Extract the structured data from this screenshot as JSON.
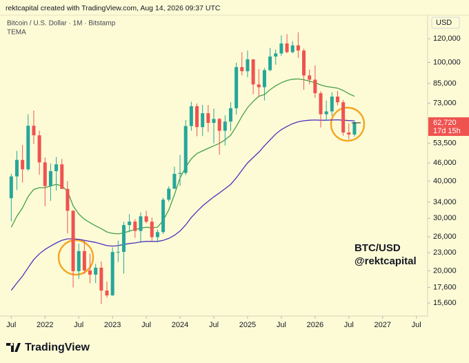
{
  "chart_data": {
    "type": "candlestick",
    "header": "rektcapital created with TradingView.com, Aug 14, 2026 09:37 UTC",
    "title": "Bitcoin / U.S. Dollar · 1M · Bitstamp",
    "indicator": "TEMA",
    "currency": "USD",
    "annotation_pair": "BTC/USD",
    "annotation_author": "@rektcapital",
    "brand": "TradingView",
    "last_label": "62,720",
    "countdown": "17d 15h",
    "up_color": "#26a69a",
    "down_color": "#ef5350",
    "log_scale": true,
    "grid": false,
    "x": [
      "2021-07",
      "2021-08",
      "2021-09",
      "2021-10",
      "2021-11",
      "2021-12",
      "2022-01",
      "2022-02",
      "2022-03",
      "2022-04",
      "2022-05",
      "2022-06",
      "2022-07",
      "2022-08",
      "2022-09",
      "2022-10",
      "2022-11",
      "2022-12",
      "2023-01",
      "2023-02",
      "2023-03",
      "2023-04",
      "2023-05",
      "2023-06",
      "2023-07",
      "2023-08",
      "2023-09",
      "2023-10",
      "2023-11",
      "2023-12",
      "2024-01",
      "2024-02",
      "2024-03",
      "2024-04",
      "2024-05",
      "2024-06",
      "2024-07",
      "2024-08",
      "2024-09",
      "2024-10",
      "2024-11",
      "2024-12",
      "2025-01",
      "2025-02",
      "2025-03",
      "2025-04",
      "2025-05",
      "2025-06",
      "2025-07",
      "2025-08",
      "2025-09",
      "2025-10",
      "2025-11",
      "2025-12",
      "2026-01",
      "2026-02",
      "2026-03",
      "2026-04",
      "2026-05",
      "2026-06",
      "2026-07",
      "2026-08"
    ],
    "open": [
      35030,
      41460,
      47100,
      43790,
      61310,
      56950,
      46210,
      38480,
      43180,
      45510,
      37640,
      31800,
      19940,
      23290,
      20050,
      19420,
      20490,
      17170,
      16540,
      23130,
      23140,
      28470,
      29250,
      27210,
      30470,
      29230,
      25940,
      26970,
      34640,
      37720,
      42280,
      42580,
      61170,
      71330,
      60670,
      67530,
      62680,
      64630,
      58970,
      63330,
      70220,
      96450,
      93430,
      102410,
      84350,
      82550,
      94210,
      104640,
      107170,
      115760,
      108250,
      114050,
      109600,
      90400,
      87500,
      78800,
      67000,
      68500,
      76800,
      73500,
      58200,
      57300
    ],
    "high": [
      42320,
      50480,
      52900,
      67000,
      69000,
      59050,
      48000,
      45800,
      48190,
      47440,
      40000,
      31990,
      24660,
      25200,
      22800,
      21090,
      21480,
      18400,
      23950,
      25250,
      29200,
      31000,
      29830,
      31400,
      31800,
      30200,
      27490,
      35200,
      38420,
      44700,
      48970,
      64000,
      73800,
      72800,
      72000,
      71980,
      70000,
      65100,
      66500,
      73600,
      99800,
      108300,
      109600,
      102500,
      95000,
      95750,
      111900,
      110500,
      123200,
      124400,
      117900,
      126200,
      111200,
      94600,
      97800,
      80000,
      74500,
      79500,
      80200,
      74800,
      62500,
      63800
    ],
    "low": [
      29280,
      37330,
      39600,
      43300,
      53260,
      42000,
      32950,
      34300,
      37170,
      37700,
      26700,
      17600,
      18780,
      19540,
      18150,
      18180,
      15480,
      16260,
      16500,
      21400,
      19570,
      26940,
      25810,
      24800,
      28860,
      25170,
      24900,
      26550,
      34100,
      37630,
      38500,
      41880,
      59000,
      56500,
      56560,
      58400,
      53500,
      49000,
      52600,
      58900,
      66800,
      90500,
      89200,
      78250,
      76600,
      74500,
      93400,
      98200,
      105100,
      107400,
      107300,
      103500,
      81000,
      84400,
      76000,
      60500,
      63800,
      66200,
      71800,
      56800,
      55200,
      56400
    ],
    "close": [
      41460,
      47100,
      43790,
      61310,
      56950,
      46210,
      38480,
      43180,
      45510,
      37640,
      31800,
      19940,
      23290,
      20050,
      19420,
      20490,
      17170,
      16540,
      23130,
      23140,
      28470,
      29250,
      27210,
      30470,
      29230,
      25940,
      26970,
      34640,
      37720,
      42280,
      42580,
      61170,
      71330,
      60670,
      67530,
      62680,
      64630,
      58970,
      63330,
      70220,
      96450,
      93430,
      102410,
      84350,
      82550,
      94210,
      104640,
      107170,
      115760,
      108250,
      114050,
      109600,
      90400,
      87500,
      78800,
      67000,
      68500,
      76800,
      73500,
      58200,
      57300,
      62720
    ],
    "lines": [
      {
        "color": "#43a047",
        "values": [
          28000,
          30500,
          32500,
          35500,
          37500,
          38000,
          38000,
          38500,
          39000,
          38500,
          37000,
          33000,
          31000,
          29800,
          29000,
          28300,
          27700,
          27000,
          26700,
          26600,
          26800,
          27200,
          27500,
          27800,
          28000,
          27900,
          28000,
          29500,
          32000,
          36000,
          41000,
          44500,
          47500,
          49500,
          50500,
          51500,
          52500,
          53500,
          55000,
          57000,
          61000,
          66000,
          70500,
          74000,
          77000,
          78000,
          81000,
          83500,
          85500,
          87000,
          87800,
          88000,
          87500,
          86500,
          85500,
          84000,
          83000,
          82500,
          82000,
          80500,
          78500,
          77000
        ]
      },
      {
        "color": "#4a2fbf",
        "values": [
          17200,
          18200,
          19200,
          20500,
          21800,
          22800,
          23600,
          24200,
          24800,
          25300,
          25600,
          25600,
          25500,
          25300,
          25100,
          24900,
          24600,
          24300,
          24200,
          24300,
          24500,
          24700,
          24800,
          25000,
          25100,
          25100,
          25100,
          25300,
          25700,
          26300,
          27200,
          28500,
          30200,
          31600,
          33000,
          34200,
          35400,
          36500,
          37700,
          39000,
          41000,
          43500,
          46000,
          48000,
          50000,
          52500,
          55000,
          57500,
          59500,
          61000,
          62300,
          63200,
          63700,
          64000,
          64100,
          64000,
          64000,
          64100,
          64200,
          64000,
          63800,
          63700
        ]
      }
    ],
    "ylim": [
      14100,
      144000
    ],
    "yticks": [
      {
        "value": 120000,
        "label": "120,000"
      },
      {
        "value": 100000,
        "label": "100,000"
      },
      {
        "value": 85000,
        "label": "85,000"
      },
      {
        "value": 73000,
        "label": "73,000"
      },
      {
        "value": 53500,
        "label": "53,500"
      },
      {
        "value": 46000,
        "label": "46,000"
      },
      {
        "value": 40000,
        "label": "40,000"
      },
      {
        "value": 34000,
        "label": "34,000"
      },
      {
        "value": 30000,
        "label": "30,000"
      },
      {
        "value": 26000,
        "label": "26,000"
      },
      {
        "value": 23000,
        "label": "23,000"
      },
      {
        "value": 20000,
        "label": "20,000"
      },
      {
        "value": 17600,
        "label": "17,600"
      },
      {
        "value": 15600,
        "label": "15,600"
      }
    ],
    "xlim": [
      "2021-05",
      "2027-09"
    ],
    "xticks": [
      {
        "value": "2021-07",
        "label": "Jul"
      },
      {
        "value": "2022-01",
        "label": "2022"
      },
      {
        "value": "2022-07",
        "label": "Jul"
      },
      {
        "value": "2023-01",
        "label": "2023"
      },
      {
        "value": "2023-07",
        "label": "Jul"
      },
      {
        "value": "2024-01",
        "label": "2024"
      },
      {
        "value": "2024-07",
        "label": "Jul"
      },
      {
        "value": "2025-01",
        "label": "2025"
      },
      {
        "value": "2025-07",
        "label": "Jul"
      },
      {
        "value": "2026-01",
        "label": "2026"
      },
      {
        "value": "2026-07",
        "label": "Jul"
      },
      {
        "value": "2027-01",
        "label": "2027"
      },
      {
        "value": "2027-07",
        "label": "Jul"
      }
    ]
  }
}
